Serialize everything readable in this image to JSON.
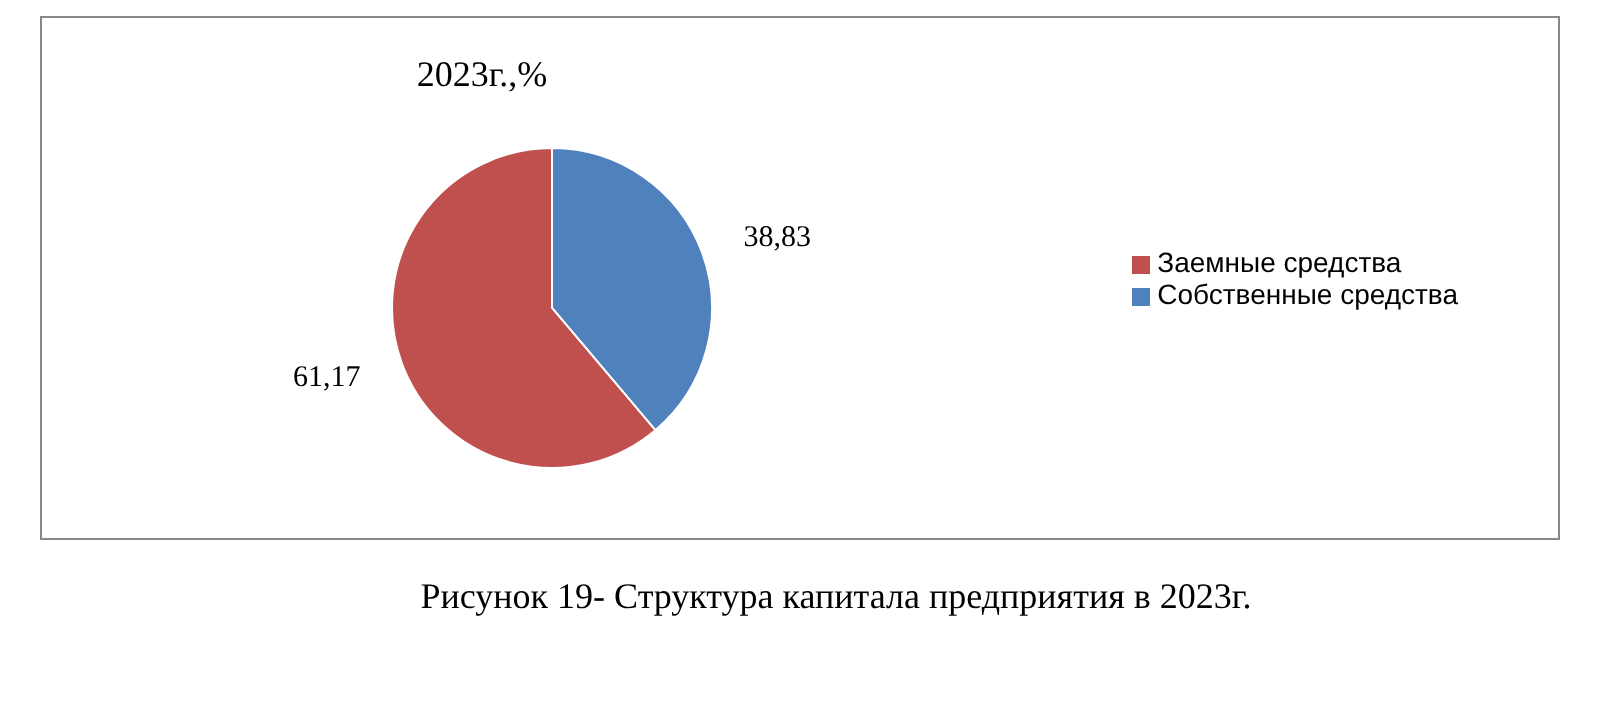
{
  "chart_data": {
    "type": "pie",
    "title": "2023г.,%",
    "categories": [
      "Собственные средства",
      "Заемные средства"
    ],
    "values": [
      38.83,
      61.17
    ],
    "colors": [
      "#4f81bd",
      "#c0504d"
    ],
    "value_labels": [
      "38,83",
      "61,17"
    ],
    "legend": "right",
    "annotations": [
      "Рисунок 19- Структура капитала предприятия в 2023г."
    ]
  }
}
